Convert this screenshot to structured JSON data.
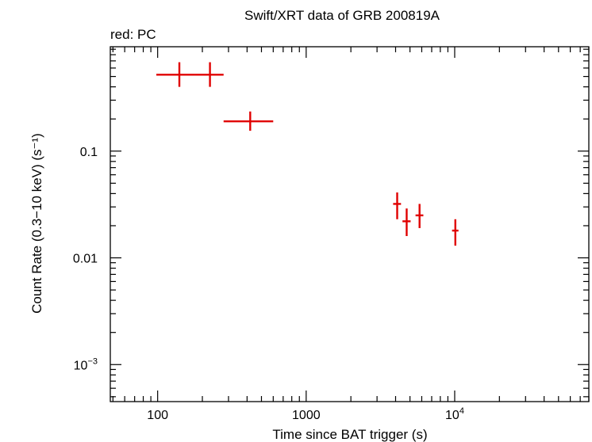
{
  "chart_data": {
    "type": "scatter",
    "title": "Swift/XRT data of GRB 200819A",
    "subtitle": "red: PC",
    "xlabel": "Time since BAT trigger (s)",
    "ylabel": "Count Rate (0.3−10 keV) (s⁻¹)",
    "x_scale": "log",
    "y_scale": "log",
    "xlim": [
      48,
      80000
    ],
    "ylim": [
      0.00045,
      0.95
    ],
    "x_ticks": [
      {
        "value": 100,
        "label": "100",
        "sup": ""
      },
      {
        "value": 1000,
        "label": "1000",
        "sup": ""
      },
      {
        "value": 10000,
        "label": "10",
        "sup": "4"
      }
    ],
    "y_ticks": [
      {
        "value": 0.1,
        "label": "0.1",
        "sup": ""
      },
      {
        "value": 0.01,
        "label": "0.01",
        "sup": ""
      },
      {
        "value": 0.001,
        "label": "10",
        "sup": "−3"
      }
    ],
    "grid": false,
    "series": [
      {
        "color": "#e00000",
        "points": [
          {
            "x": 140,
            "x_lo": 98,
            "x_hi": 178,
            "y": 0.52,
            "y_lo": 0.4,
            "y_hi": 0.68
          },
          {
            "x": 225,
            "x_lo": 178,
            "x_hi": 278,
            "y": 0.52,
            "y_lo": 0.4,
            "y_hi": 0.68
          },
          {
            "x": 420,
            "x_lo": 278,
            "x_hi": 600,
            "y": 0.19,
            "y_lo": 0.155,
            "y_hi": 0.235
          },
          {
            "x": 4100,
            "x_lo": 3850,
            "x_hi": 4350,
            "y": 0.032,
            "y_lo": 0.023,
            "y_hi": 0.041
          },
          {
            "x": 4750,
            "x_lo": 4450,
            "x_hi": 5050,
            "y": 0.022,
            "y_lo": 0.016,
            "y_hi": 0.029
          },
          {
            "x": 5800,
            "x_lo": 5450,
            "x_hi": 6150,
            "y": 0.025,
            "y_lo": 0.019,
            "y_hi": 0.032
          },
          {
            "x": 10100,
            "x_lo": 9600,
            "x_hi": 10600,
            "y": 0.018,
            "y_lo": 0.013,
            "y_hi": 0.023
          }
        ]
      }
    ]
  }
}
